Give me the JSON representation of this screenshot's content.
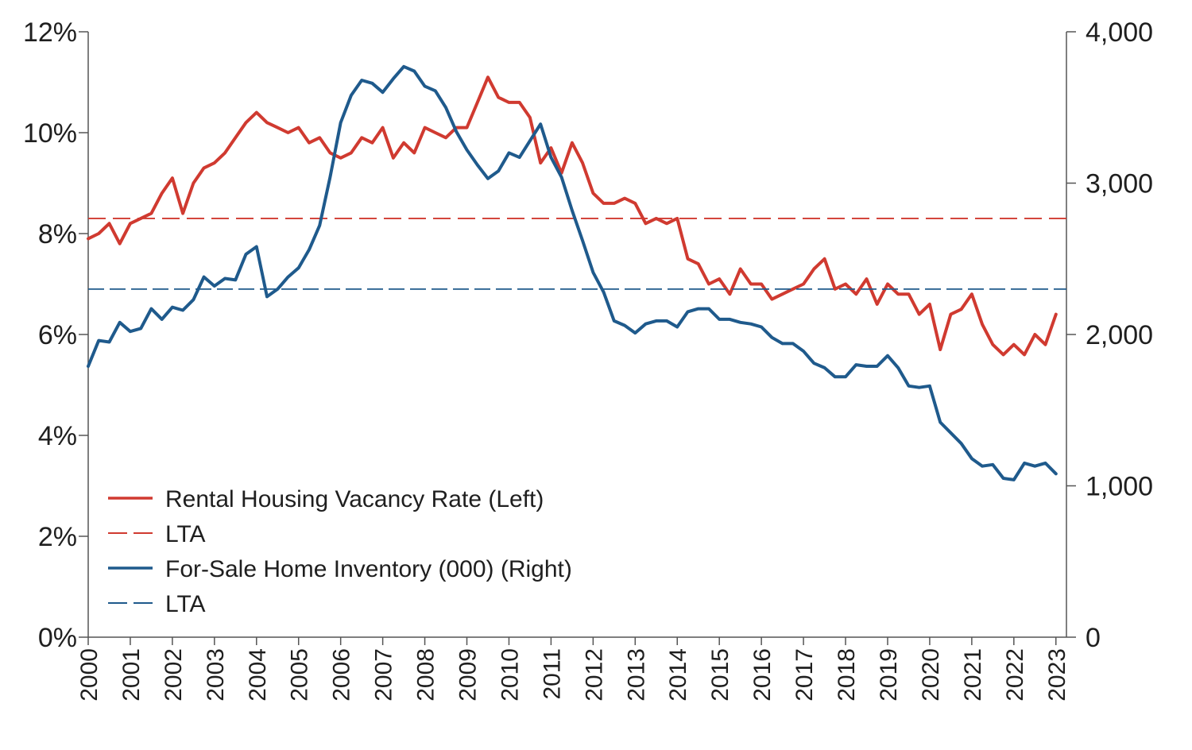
{
  "chart_data": {
    "type": "line",
    "title": "",
    "xlabel": "",
    "ylabel_left": "",
    "ylabel_right": "",
    "x_start": 2000.0,
    "x_step": 0.25,
    "x_range": [
      2000,
      2023.25
    ],
    "x_ticks": [
      "2000",
      "2001",
      "2002",
      "2003",
      "2004",
      "2005",
      "2006",
      "2007",
      "2008",
      "2009",
      "2010",
      "2011",
      "2012",
      "2013",
      "2014",
      "2015",
      "2016",
      "2017",
      "2018",
      "2019",
      "2020",
      "2021",
      "2022",
      "2023"
    ],
    "y_left": {
      "range": [
        0,
        12
      ],
      "ticks": [
        0,
        2,
        4,
        6,
        8,
        10,
        12
      ],
      "tick_labels": [
        "0%",
        "2%",
        "4%",
        "6%",
        "8%",
        "10%",
        "12%"
      ]
    },
    "y_right": {
      "range": [
        0,
        4000
      ],
      "ticks": [
        0,
        1000,
        2000,
        3000,
        4000
      ],
      "tick_labels": [
        "0",
        "1,000",
        "2,000",
        "3,000",
        "4,000"
      ]
    },
    "legend_position": "bottom-left",
    "series": [
      {
        "name": "Rental Housing Vacancy Rate (Left)",
        "axis": "left",
        "style": "solid",
        "color": "#d03a30",
        "values": [
          7.9,
          8.0,
          8.2,
          7.8,
          8.2,
          8.3,
          8.4,
          8.8,
          9.1,
          8.4,
          9.0,
          9.3,
          9.4,
          9.6,
          9.9,
          10.2,
          10.4,
          10.2,
          10.1,
          10.0,
          10.1,
          9.8,
          9.9,
          9.6,
          9.5,
          9.6,
          9.9,
          9.8,
          10.1,
          9.5,
          9.8,
          9.6,
          10.1,
          10.0,
          9.9,
          10.1,
          10.1,
          10.6,
          11.1,
          10.7,
          10.6,
          10.6,
          10.3,
          9.4,
          9.7,
          9.2,
          9.8,
          9.4,
          8.8,
          8.6,
          8.6,
          8.7,
          8.6,
          8.2,
          8.3,
          8.2,
          8.3,
          7.5,
          7.4,
          7.0,
          7.1,
          6.8,
          7.3,
          7.0,
          7.0,
          6.7,
          6.8,
          6.9,
          7.0,
          7.3,
          7.5,
          6.9,
          7.0,
          6.8,
          7.1,
          6.6,
          7.0,
          6.8,
          6.8,
          6.4,
          6.6,
          5.7,
          6.4,
          6.5,
          6.8,
          6.2,
          5.8,
          5.6,
          5.8,
          5.6,
          6.0,
          5.8,
          6.4
        ]
      },
      {
        "name": "LTA",
        "axis": "left",
        "style": "dashed",
        "color": "#d03a30",
        "value": 8.3
      },
      {
        "name": "For-Sale Home Inventory (000) (Right)",
        "axis": "right",
        "style": "solid",
        "color": "#1f5a8c",
        "values": [
          1790,
          1960,
          1950,
          2080,
          2020,
          2040,
          2170,
          2100,
          2180,
          2160,
          2230,
          2380,
          2320,
          2370,
          2360,
          2530,
          2580,
          2250,
          2300,
          2380,
          2440,
          2560,
          2720,
          3040,
          3400,
          3580,
          3680,
          3660,
          3600,
          3690,
          3770,
          3740,
          3640,
          3610,
          3500,
          3340,
          3220,
          3120,
          3030,
          3080,
          3200,
          3170,
          3280,
          3390,
          3170,
          3040,
          2820,
          2620,
          2410,
          2280,
          2090,
          2060,
          2010,
          2070,
          2090,
          2090,
          2050,
          2150,
          2170,
          2170,
          2100,
          2100,
          2080,
          2070,
          2050,
          1980,
          1940,
          1940,
          1890,
          1810,
          1780,
          1720,
          1720,
          1800,
          1790,
          1790,
          1860,
          1780,
          1660,
          1650,
          1660,
          1420,
          1350,
          1280,
          1180,
          1130,
          1140,
          1050,
          1040,
          1150,
          1130,
          1150,
          1080
        ]
      },
      {
        "name": "LTA",
        "axis": "right",
        "style": "dashed",
        "color": "#1f5a8c",
        "value": 2300
      }
    ]
  }
}
